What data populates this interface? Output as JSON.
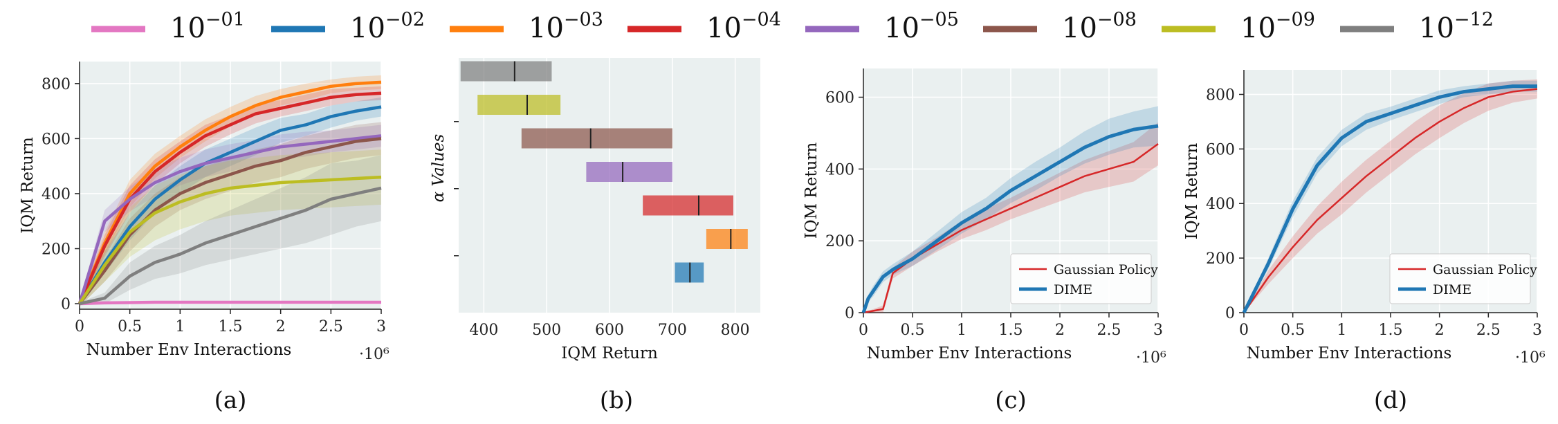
{
  "legend": {
    "entries": [
      {
        "base": "10",
        "exp": "−01",
        "color": "#e377c2"
      },
      {
        "base": "10",
        "exp": "−02",
        "color": "#1f77b4"
      },
      {
        "base": "10",
        "exp": "−03",
        "color": "#ff7f0e"
      },
      {
        "base": "10",
        "exp": "−04",
        "color": "#d62728"
      },
      {
        "base": "10",
        "exp": "−05",
        "color": "#9467bd"
      },
      {
        "base": "10",
        "exp": "−08",
        "color": "#8c564b"
      },
      {
        "base": "10",
        "exp": "−09",
        "color": "#bcbd22"
      },
      {
        "base": "10",
        "exp": "−12",
        "color": "#7f7f7f"
      }
    ]
  },
  "chart_data": [
    {
      "panel": "(a)",
      "type": "line",
      "xlabel": "Number Env Interactions",
      "x_multiplier": "·10⁶",
      "ylabel": "IQM Return",
      "xlim": [
        0,
        3
      ],
      "ylim": [
        -20,
        880
      ],
      "xticks": [
        "0",
        "0.5",
        "1",
        "1.5",
        "2",
        "2.5",
        "3"
      ],
      "yticks": [
        "0",
        "200",
        "400",
        "600",
        "800"
      ],
      "grid": true,
      "series": [
        {
          "color": "#e377c2",
          "x": [
            0,
            0.25,
            0.5,
            0.75,
            1,
            1.25,
            1.5,
            1.75,
            2,
            2.25,
            2.5,
            2.75,
            3
          ],
          "y": [
            0,
            3,
            4,
            5,
            5,
            5,
            5,
            5,
            5,
            5,
            5,
            5,
            5
          ],
          "band": [
            3,
            3,
            3,
            3,
            3,
            3,
            3,
            3,
            3,
            3,
            3,
            3,
            3
          ]
        },
        {
          "color": "#1f77b4",
          "x": [
            0,
            0.25,
            0.5,
            0.75,
            1,
            1.25,
            1.5,
            1.75,
            2,
            2.25,
            2.5,
            2.75,
            3
          ],
          "y": [
            0,
            150,
            280,
            380,
            450,
            510,
            550,
            590,
            630,
            650,
            680,
            700,
            715
          ],
          "band": [
            10,
            40,
            50,
            50,
            50,
            50,
            50,
            50,
            45,
            40,
            40,
            35,
            35
          ]
        },
        {
          "color": "#ff7f0e",
          "x": [
            0,
            0.25,
            0.5,
            0.75,
            1,
            1.25,
            1.5,
            1.75,
            2,
            2.25,
            2.5,
            2.75,
            3
          ],
          "y": [
            0,
            220,
            400,
            500,
            570,
            630,
            680,
            720,
            750,
            770,
            790,
            800,
            805
          ],
          "band": [
            10,
            40,
            50,
            45,
            40,
            40,
            35,
            35,
            30,
            30,
            25,
            25,
            25
          ]
        },
        {
          "color": "#d62728",
          "x": [
            0,
            0.25,
            0.5,
            0.75,
            1,
            1.25,
            1.5,
            1.75,
            2,
            2.25,
            2.5,
            2.75,
            3
          ],
          "y": [
            0,
            210,
            380,
            480,
            550,
            610,
            650,
            690,
            710,
            730,
            750,
            760,
            765
          ],
          "band": [
            10,
            40,
            50,
            45,
            40,
            40,
            35,
            35,
            30,
            30,
            30,
            25,
            25
          ]
        },
        {
          "color": "#9467bd",
          "x": [
            0,
            0.25,
            0.5,
            0.75,
            1,
            1.25,
            1.5,
            1.75,
            2,
            2.25,
            2.5,
            2.75,
            3
          ],
          "y": [
            0,
            300,
            380,
            440,
            480,
            510,
            530,
            550,
            570,
            580,
            590,
            600,
            610
          ],
          "band": [
            10,
            40,
            45,
            50,
            50,
            50,
            50,
            45,
            45,
            45,
            40,
            40,
            40
          ]
        },
        {
          "color": "#8c564b",
          "x": [
            0,
            0.25,
            0.5,
            0.75,
            1,
            1.25,
            1.5,
            1.75,
            2,
            2.25,
            2.5,
            2.75,
            3
          ],
          "y": [
            0,
            120,
            250,
            340,
            400,
            440,
            470,
            500,
            520,
            550,
            570,
            590,
            600
          ],
          "band": [
            10,
            40,
            60,
            60,
            60,
            60,
            60,
            60,
            60,
            60,
            60,
            60,
            60
          ]
        },
        {
          "color": "#bcbd22",
          "x": [
            0,
            0.25,
            0.5,
            0.75,
            1,
            1.25,
            1.5,
            1.75,
            2,
            2.25,
            2.5,
            2.75,
            3
          ],
          "y": [
            0,
            140,
            260,
            330,
            370,
            400,
            420,
            430,
            440,
            445,
            450,
            455,
            460
          ],
          "band": [
            10,
            60,
            90,
            100,
            100,
            100,
            100,
            100,
            100,
            100,
            100,
            100,
            100
          ]
        },
        {
          "color": "#7f7f7f",
          "x": [
            0,
            0.25,
            0.5,
            0.75,
            1,
            1.25,
            1.5,
            1.75,
            2,
            2.25,
            2.5,
            2.75,
            3
          ],
          "y": [
            0,
            20,
            100,
            150,
            180,
            220,
            250,
            280,
            310,
            340,
            380,
            400,
            420
          ],
          "band": [
            5,
            20,
            50,
            60,
            70,
            80,
            90,
            100,
            110,
            120,
            130,
            120,
            120
          ]
        }
      ]
    },
    {
      "panel": "(b)",
      "type": "bar",
      "xlabel": "IQM Return",
      "ylabel": "α Values",
      "xlim": [
        360,
        840
      ],
      "xticks": [
        "400",
        "500",
        "600",
        "700",
        "800"
      ],
      "grid": true,
      "ranges": [
        {
          "color": "#7f7f7f",
          "low": 363,
          "high": 508,
          "median": 449
        },
        {
          "color": "#bcbd22",
          "low": 390,
          "high": 522,
          "median": 469
        },
        {
          "color": "#8c564b",
          "low": 460,
          "high": 700,
          "median": 570
        },
        {
          "color": "#9467bd",
          "low": 563,
          "high": 700,
          "median": 621
        },
        {
          "color": "#d62728",
          "low": 653,
          "high": 797,
          "median": 742
        },
        {
          "color": "#ff7f0e",
          "low": 754,
          "high": 820,
          "median": 793
        },
        {
          "color": "#1f77b4",
          "low": 704,
          "high": 750,
          "median": 728
        }
      ]
    },
    {
      "panel": "(c)",
      "type": "line",
      "xlabel": "Number Env Interactions",
      "x_multiplier": "·10⁶",
      "ylabel": "IQM Return",
      "xlim": [
        0,
        3
      ],
      "ylim": [
        0,
        680
      ],
      "xticks": [
        "0",
        "0.5",
        "1",
        "1.5",
        "2",
        "2.5",
        "3"
      ],
      "yticks": [
        "0",
        "200",
        "400",
        "600"
      ],
      "grid": true,
      "legend_position": "bottom-right",
      "series": [
        {
          "name": "Gaussian Policy",
          "color": "#d62728",
          "x": [
            0,
            0.2,
            0.3,
            0.5,
            0.75,
            1,
            1.25,
            1.5,
            1.75,
            2,
            2.25,
            2.5,
            2.75,
            3
          ],
          "y": [
            0,
            10,
            110,
            150,
            190,
            230,
            260,
            290,
            320,
            350,
            380,
            400,
            420,
            470
          ],
          "band": [
            0,
            10,
            15,
            20,
            20,
            25,
            30,
            30,
            35,
            40,
            45,
            50,
            55,
            60
          ]
        },
        {
          "name": "DIME",
          "color": "#1f77b4",
          "x": [
            0,
            0.05,
            0.1,
            0.2,
            0.3,
            0.5,
            0.75,
            1,
            1.25,
            1.5,
            1.75,
            2,
            2.25,
            2.5,
            2.75,
            3
          ],
          "y": [
            0,
            40,
            60,
            100,
            120,
            150,
            200,
            250,
            290,
            340,
            380,
            420,
            460,
            490,
            510,
            520
          ],
          "band": [
            0,
            10,
            15,
            15,
            15,
            20,
            25,
            30,
            30,
            35,
            40,
            40,
            45,
            50,
            50,
            55
          ]
        }
      ]
    },
    {
      "panel": "(d)",
      "type": "line",
      "xlabel": "Number Env Interactions",
      "x_multiplier": "·10⁶",
      "ylabel": "IQM Return",
      "xlim": [
        0,
        3
      ],
      "ylim": [
        0,
        890
      ],
      "xticks": [
        "0",
        "0.5",
        "1",
        "1.5",
        "2",
        "2.5",
        "3"
      ],
      "yticks": [
        "0",
        "200",
        "400",
        "600",
        "800"
      ],
      "grid": true,
      "legend_position": "bottom-right",
      "series": [
        {
          "name": "Gaussian Policy",
          "color": "#d62728",
          "x": [
            0,
            0.25,
            0.5,
            0.75,
            1,
            1.25,
            1.5,
            1.75,
            2,
            2.25,
            2.5,
            2.75,
            3
          ],
          "y": [
            0,
            130,
            240,
            340,
            420,
            500,
            570,
            640,
            700,
            750,
            790,
            810,
            820
          ],
          "band": [
            0,
            25,
            40,
            50,
            60,
            60,
            60,
            60,
            60,
            55,
            50,
            40,
            35
          ]
        },
        {
          "name": "DIME",
          "color": "#1f77b4",
          "x": [
            0,
            0.25,
            0.5,
            0.75,
            1,
            1.25,
            1.5,
            1.75,
            2,
            2.25,
            2.5,
            2.75,
            3
          ],
          "y": [
            0,
            180,
            380,
            540,
            640,
            700,
            730,
            760,
            790,
            810,
            820,
            830,
            830
          ],
          "band": [
            0,
            20,
            30,
            30,
            30,
            30,
            25,
            25,
            25,
            20,
            20,
            20,
            20
          ]
        }
      ]
    }
  ]
}
